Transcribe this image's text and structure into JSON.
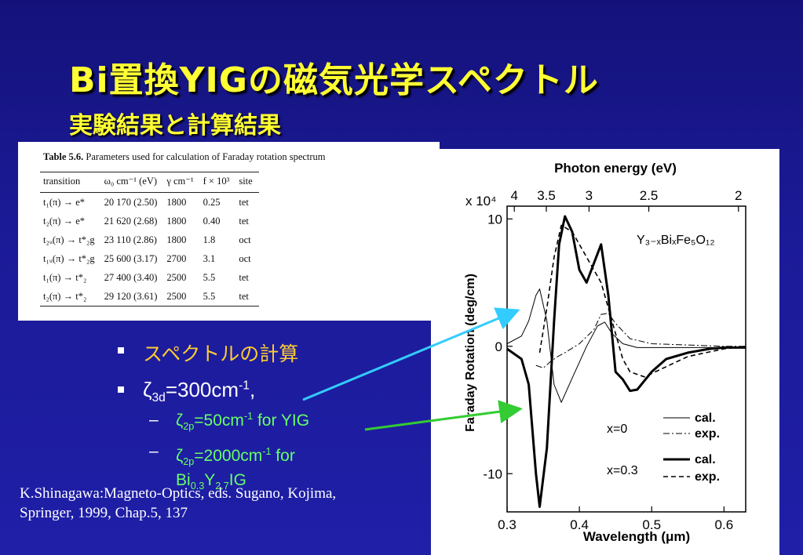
{
  "slide": {
    "title": "Bi置換YIGの磁気光学スペクトル",
    "subtitle": "実験結果と計算結果"
  },
  "table": {
    "caption_label": "Table 5.6.",
    "caption_text": "Parameters used for calculation of Faraday rotation spectrum",
    "headers": [
      "transition",
      "ω₀ cm⁻¹ (eV)",
      "γ cm⁻¹",
      "f × 10³",
      "site"
    ],
    "rows": [
      [
        "t₁(π) → e*",
        "20 170 (2.50)",
        "1800",
        "0.25",
        "tet"
      ],
      [
        "t₂(π) → e*",
        "21 620 (2.68)",
        "1800",
        "0.40",
        "tet"
      ],
      [
        "t₂ᵤ(π) → t*₂g",
        "23 110 (2.86)",
        "1800",
        "1.8",
        "oct"
      ],
      [
        "t₁ᵤ(π) → t*₂g",
        "25 600 (3.17)",
        "2700",
        "3.1",
        "oct"
      ],
      [
        "t₁(π) → t*₂",
        "27 400 (3.40)",
        "2500",
        "5.5",
        "tet"
      ],
      [
        "t₂(π) → t*₂",
        "29 120 (3.61)",
        "2500",
        "5.5",
        "tet"
      ]
    ]
  },
  "bullets": {
    "item1": "スペクトルの計算",
    "item2_symbol": "ζ",
    "item2_sub": "3d",
    "item2_value": "=300cm",
    "item2_sup": "-1",
    "item2_tail": ",",
    "dash": "–",
    "sub1_symbol": "ζ",
    "sub1_sub": "2p",
    "sub1_value": "=50cm",
    "sub1_sup": "-1",
    "sub1_tail": " for YIG",
    "sub2_symbol": "ζ",
    "sub2_sub": "2p",
    "sub2_value": "=2000cm",
    "sub2_sup": "-1",
    "sub2_tail": " for",
    "sub2_line2_a": "Bi",
    "sub2_line2_sub1": "0.3",
    "sub2_line2_b": "Y",
    "sub2_line2_sub2": "2.7",
    "sub2_line2_c": "IG"
  },
  "citation": {
    "line1": "K.Shinagawa:Magneto-Optics, eds. Sugano, Kojima,",
    "line2": "Springer, 1999, Chap.5, 137"
  },
  "colors": {
    "title": "#ffff33",
    "bullet1": "#ffcc33",
    "sub_items": "#66ff66",
    "arrow_cyan": "#33ccff",
    "arrow_green": "#33cc33"
  },
  "chart_data": {
    "type": "line",
    "top_axis_label": "Photon energy (eV)",
    "top_ticks": [
      "4",
      "3.5",
      "3",
      "2.5",
      "2"
    ],
    "top_tick_values": [
      4,
      3.5,
      3,
      2.5,
      2
    ],
    "xlabel": "Wavelength (μm)",
    "ylabel": "Faraday Rotation (deg/cm)",
    "y_multiplier": "x 10⁴",
    "xlim": [
      0.3,
      0.63
    ],
    "ylim": [
      -13,
      11
    ],
    "x_ticks": [
      "0.3",
      "0.4",
      "0.5",
      "0.6"
    ],
    "x_tick_values": [
      0.3,
      0.4,
      0.5,
      0.6
    ],
    "y_ticks": [
      "10",
      "0",
      "-10"
    ],
    "y_tick_values": [
      10,
      0,
      -10
    ],
    "formula": "Y₃₋ₓBiₓFe₅O₁₂",
    "legend": {
      "x0": "x=0",
      "x03": "x=0.3",
      "cal": "cal.",
      "exp": "exp."
    },
    "series": [
      {
        "name": "x=0 cal.",
        "style": "thin-solid",
        "x": [
          0.3,
          0.32,
          0.33,
          0.34,
          0.345,
          0.355,
          0.365,
          0.375,
          0.39,
          0.41,
          0.425,
          0.435,
          0.445,
          0.46,
          0.48,
          0.5,
          0.55,
          0.6,
          0.63
        ],
        "y": [
          0.2,
          0.8,
          2,
          4,
          4.5,
          2,
          -3,
          -4.4,
          -2.5,
          0,
          1.6,
          1.9,
          1,
          0.2,
          -0.1,
          -0.1,
          -0.1,
          -0.1,
          -0.1
        ]
      },
      {
        "name": "x=0 exp.",
        "style": "thin-dashdot",
        "x": [
          0.34,
          0.35,
          0.36,
          0.37,
          0.38,
          0.4,
          0.42,
          0.43,
          0.44,
          0.45,
          0.47,
          0.5,
          0.55,
          0.6,
          0.63
        ],
        "y": [
          -1.5,
          -1.7,
          -1.2,
          -0.8,
          -0.5,
          0.2,
          1.3,
          2.5,
          2.6,
          1.8,
          0.6,
          0.2,
          0.1,
          0,
          0
        ]
      },
      {
        "name": "x=0.3 cal.",
        "style": "thick-solid",
        "x": [
          0.3,
          0.32,
          0.33,
          0.34,
          0.345,
          0.355,
          0.365,
          0.372,
          0.38,
          0.39,
          0.4,
          0.41,
          0.42,
          0.43,
          0.44,
          0.45,
          0.46,
          0.47,
          0.48,
          0.5,
          0.52,
          0.55,
          0.58,
          0.6,
          0.63
        ],
        "y": [
          -0.2,
          -1,
          -3,
          -10,
          -12.6,
          -8,
          2,
          8,
          10.2,
          9,
          6,
          5,
          6.5,
          8,
          4,
          -2,
          -2.6,
          -3.5,
          -3.4,
          -2,
          -1,
          -0.5,
          -0.2,
          -0.1,
          -0.1
        ]
      },
      {
        "name": "x=0.3 exp.",
        "style": "dashed",
        "x": [
          0.345,
          0.355,
          0.365,
          0.375,
          0.39,
          0.41,
          0.43,
          0.44,
          0.45,
          0.46,
          0.47,
          0.49,
          0.52,
          0.55,
          0.6,
          0.63
        ],
        "y": [
          -0.5,
          3,
          7,
          9.5,
          9,
          7,
          5,
          3,
          1,
          -1,
          -2,
          -2.4,
          -1.6,
          -0.8,
          -0.2,
          0
        ]
      }
    ]
  }
}
